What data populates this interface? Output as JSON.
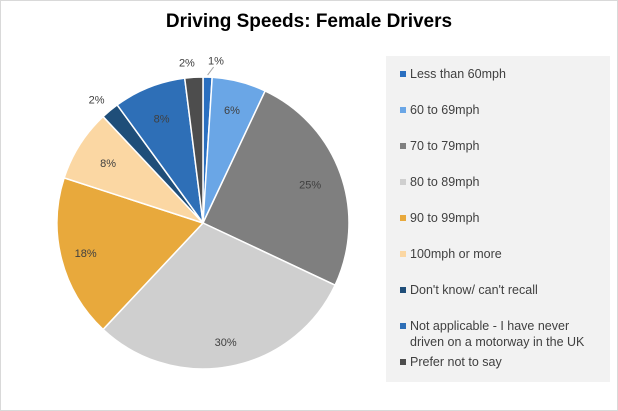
{
  "chart_data": {
    "type": "pie",
    "title": "Driving Speeds: Female Drivers",
    "legend_position": "right",
    "start_angle": "12 o'clock, clockwise",
    "slices": [
      {
        "label": "Less than 60mph",
        "value": 1,
        "display": "1%",
        "color": "#2a6fc0"
      },
      {
        "label": "60 to 69mph",
        "value": 6,
        "display": "6%",
        "color": "#6aa6e6"
      },
      {
        "label": "70 to 79mph",
        "value": 25,
        "display": "25%",
        "color": "#7f7f7f"
      },
      {
        "label": "80 to 89mph",
        "value": 30,
        "display": "30%",
        "color": "#cfcfcf"
      },
      {
        "label": "90 to 99mph",
        "value": 18,
        "display": "18%",
        "color": "#e8a93c"
      },
      {
        "label": "100mph or more",
        "value": 8,
        "display": "8%",
        "color": "#fbd7a3"
      },
      {
        "label": "Don't know/ can't recall",
        "value": 2,
        "display": "2%",
        "color": "#1f4e79"
      },
      {
        "label": "Not applicable - I have never driven on a motorway in the UK",
        "value": 8,
        "display": "8%",
        "color": "#2e6fb7"
      },
      {
        "label": "Prefer not to say",
        "value": 2,
        "display": "2%",
        "color": "#4d4d4d"
      }
    ]
  }
}
